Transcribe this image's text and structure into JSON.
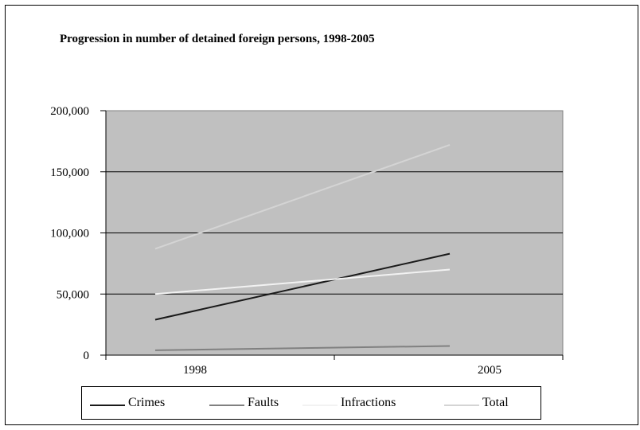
{
  "chart_data": {
    "type": "line",
    "title": "Progression in number of detained foreign persons, 1998-2005",
    "xlabel": "",
    "ylabel": "",
    "categories": [
      "1998",
      "2005"
    ],
    "y_ticks": [
      "0",
      "50,000",
      "100,000",
      "150,000",
      "200,000"
    ],
    "y_tick_values": [
      0,
      50000,
      100000,
      150000,
      200000
    ],
    "ylim": [
      0,
      200000
    ],
    "grid": true,
    "plot_background": "#c0c0c0",
    "legend_position": "bottom",
    "series": [
      {
        "name": "Crimes",
        "color": "#1a1a1a",
        "values": [
          29000,
          83000
        ]
      },
      {
        "name": "Faults",
        "color": "#808080",
        "values": [
          4000,
          7500
        ]
      },
      {
        "name": "Infractions",
        "color": "#f2f2f2",
        "values": [
          50000,
          70000
        ]
      },
      {
        "name": "Total",
        "color": "#d4d4d4",
        "values": [
          87000,
          172000
        ]
      }
    ]
  }
}
